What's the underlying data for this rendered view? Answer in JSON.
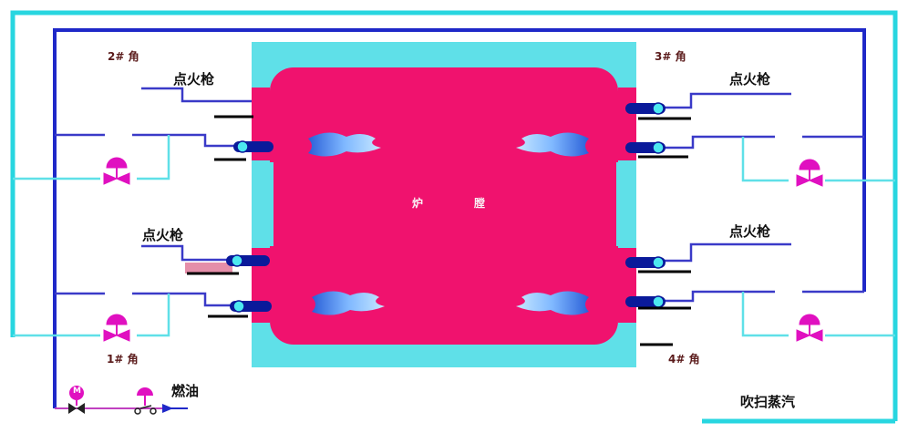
{
  "labels": {
    "igniter_top_left": "点火枪",
    "igniter_top_right": "点火枪",
    "igniter_mid_left": "点火枪",
    "igniter_mid_right": "点火枪",
    "corner_tl": "2# 角",
    "corner_tr": "3# 角",
    "corner_bl": "1# 角",
    "corner_br": "4# 角",
    "furnace_left": "炉",
    "furnace_right": "膛",
    "fuel_oil": "燃油",
    "purge_steam": "吹扫蒸汽",
    "motor_valve_symbol": "M"
  },
  "colors": {
    "oil_line": "#1f28c8",
    "steam_line": "#28d6e0",
    "furnace_wall": "#5fe0e8",
    "furnace_core": "#f0126e",
    "flame": "#3a7fe8",
    "valve": "#e010c0",
    "gun_body": "#0a1a9a"
  }
}
